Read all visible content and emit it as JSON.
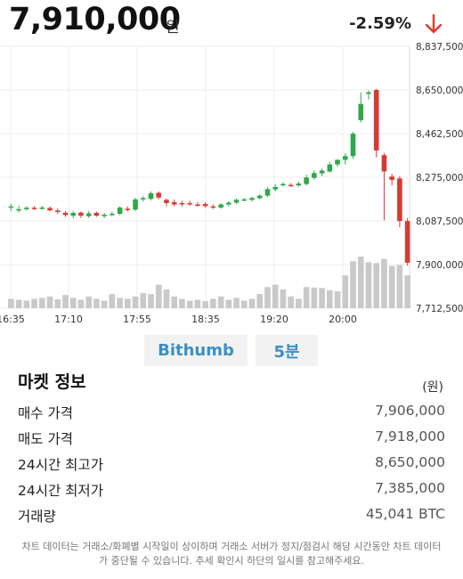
{
  "header": {
    "price": "7,910,000",
    "unit": "원",
    "change": "-2.59%",
    "arrow_icon": "arrow-down-icon",
    "arrow_color": "#e03b2e"
  },
  "colors": {
    "up": "#2ea84a",
    "down": "#d63a34",
    "volume": "#c9c9c9"
  },
  "chart_data": {
    "type": "candlestick",
    "x_ticks": [
      "16:35",
      "17:10",
      "17:55",
      "18:35",
      "19:20",
      "20:00"
    ],
    "y_ticks": [
      "8,837,500",
      "8,650,000",
      "8,462,500",
      "8,275,000",
      "8,087,500",
      "7,900,000",
      "7,712,500"
    ],
    "ylim": [
      7712500,
      8837500
    ],
    "candles": [
      {
        "o": 8150000,
        "c": 8150000,
        "h": 8160000,
        "l": 8130000,
        "v": 20
      },
      {
        "o": 8132000,
        "c": 8138000,
        "h": 8152000,
        "l": 8124000,
        "v": 18
      },
      {
        "o": 8138000,
        "c": 8144000,
        "h": 8150000,
        "l": 8132000,
        "v": 16
      },
      {
        "o": 8144000,
        "c": 8142000,
        "h": 8150000,
        "l": 8135000,
        "v": 20
      },
      {
        "o": 8142000,
        "c": 8145000,
        "h": 8152000,
        "l": 8136000,
        "v": 22
      },
      {
        "o": 8143000,
        "c": 8133000,
        "h": 8150000,
        "l": 8128000,
        "v": 25
      },
      {
        "o": 8132000,
        "c": 8126000,
        "h": 8140000,
        "l": 8118000,
        "v": 19
      },
      {
        "o": 8122000,
        "c": 8113000,
        "h": 8130000,
        "l": 8105000,
        "v": 28
      },
      {
        "o": 8110000,
        "c": 8122000,
        "h": 8130000,
        "l": 8100000,
        "v": 22
      },
      {
        "o": 8123000,
        "c": 8110000,
        "h": 8128000,
        "l": 8100000,
        "v": 18
      },
      {
        "o": 8108000,
        "c": 8120000,
        "h": 8130000,
        "l": 8100000,
        "v": 25
      },
      {
        "o": 8122000,
        "c": 8110000,
        "h": 8128000,
        "l": 8105000,
        "v": 20
      },
      {
        "o": 8108000,
        "c": 8114000,
        "h": 8122000,
        "l": 8100000,
        "v": 16
      },
      {
        "o": 8113000,
        "c": 8118000,
        "h": 8126000,
        "l": 8108000,
        "v": 30
      },
      {
        "o": 8118000,
        "c": 8145000,
        "h": 8150000,
        "l": 8112000,
        "v": 22
      },
      {
        "o": 8140000,
        "c": 8134000,
        "h": 8150000,
        "l": 8128000,
        "v": 20
      },
      {
        "o": 8136000,
        "c": 8180000,
        "h": 8186000,
        "l": 8130000,
        "v": 25
      },
      {
        "o": 8180000,
        "c": 8186000,
        "h": 8194000,
        "l": 8170000,
        "v": 32
      },
      {
        "o": 8182000,
        "c": 8206000,
        "h": 8214000,
        "l": 8176000,
        "v": 30
      },
      {
        "o": 8208000,
        "c": 8188000,
        "h": 8214000,
        "l": 8180000,
        "v": 50
      },
      {
        "o": 8178000,
        "c": 8164000,
        "h": 8184000,
        "l": 8150000,
        "v": 40
      },
      {
        "o": 8168000,
        "c": 8158000,
        "h": 8180000,
        "l": 8150000,
        "v": 25
      },
      {
        "o": 8164000,
        "c": 8162000,
        "h": 8174000,
        "l": 8150000,
        "v": 20
      },
      {
        "o": 8164000,
        "c": 8160000,
        "h": 8174000,
        "l": 8152000,
        "v": 16
      },
      {
        "o": 8158000,
        "c": 8155000,
        "h": 8168000,
        "l": 8150000,
        "v": 18
      },
      {
        "o": 8160000,
        "c": 8151000,
        "h": 8168000,
        "l": 8145000,
        "v": 15
      },
      {
        "o": 8150000,
        "c": 8145000,
        "h": 8158000,
        "l": 8138000,
        "v": 20
      },
      {
        "o": 8145000,
        "c": 8158000,
        "h": 8164000,
        "l": 8140000,
        "v": 25
      },
      {
        "o": 8158000,
        "c": 8166000,
        "h": 8172000,
        "l": 8150000,
        "v": 18
      },
      {
        "o": 8166000,
        "c": 8178000,
        "h": 8184000,
        "l": 8160000,
        "v": 22
      },
      {
        "o": 8178000,
        "c": 8180000,
        "h": 8186000,
        "l": 8172000,
        "v": 16
      },
      {
        "o": 8178000,
        "c": 8186000,
        "h": 8192000,
        "l": 8170000,
        "v": 20
      },
      {
        "o": 8185000,
        "c": 8196000,
        "h": 8202000,
        "l": 8180000,
        "v": 30
      },
      {
        "o": 8196000,
        "c": 8224000,
        "h": 8232000,
        "l": 8190000,
        "v": 45
      },
      {
        "o": 8223000,
        "c": 8233000,
        "h": 8246000,
        "l": 8215000,
        "v": 50
      },
      {
        "o": 8240000,
        "c": 8246000,
        "h": 8254000,
        "l": 8236000,
        "v": 40
      },
      {
        "o": 8242000,
        "c": 8240000,
        "h": 8250000,
        "l": 8235000,
        "v": 25
      },
      {
        "o": 8240000,
        "c": 8248000,
        "h": 8256000,
        "l": 8234000,
        "v": 20
      },
      {
        "o": 8246000,
        "c": 8274000,
        "h": 8286000,
        "l": 8240000,
        "v": 45
      },
      {
        "o": 8272000,
        "c": 8293000,
        "h": 8305000,
        "l": 8265000,
        "v": 44
      },
      {
        "o": 8292000,
        "c": 8304000,
        "h": 8312000,
        "l": 8280000,
        "v": 43
      },
      {
        "o": 8300000,
        "c": 8330000,
        "h": 8340000,
        "l": 8295000,
        "v": 38
      },
      {
        "o": 8330000,
        "c": 8350000,
        "h": 8352000,
        "l": 8320000,
        "v": 36
      },
      {
        "o": 8350000,
        "c": 8366000,
        "h": 8378000,
        "l": 8330000,
        "v": 70
      },
      {
        "o": 8366000,
        "c": 8462000,
        "h": 8470000,
        "l": 8355000,
        "v": 100
      },
      {
        "o": 8520000,
        "c": 8590000,
        "h": 8640000,
        "l": 8510000,
        "v": 110
      },
      {
        "o": 8633000,
        "c": 8640000,
        "h": 8648000,
        "l": 8610000,
        "v": 98
      },
      {
        "o": 8650000,
        "c": 8390000,
        "h": 8655000,
        "l": 8360000,
        "v": 96
      },
      {
        "o": 8370000,
        "c": 8300000,
        "h": 8380000,
        "l": 8090000,
        "v": 105
      },
      {
        "o": 8278000,
        "c": 8264000,
        "h": 8290000,
        "l": 8240000,
        "v": 90
      },
      {
        "o": 8270000,
        "c": 8087000,
        "h": 8280000,
        "l": 8060000,
        "v": 92
      },
      {
        "o": 8087000,
        "c": 7908000,
        "h": 8100000,
        "l": 7895000,
        "v": 70
      }
    ]
  },
  "tabs": {
    "exchange": "Bithumb",
    "interval": "5분"
  },
  "market": {
    "title": "마켓 정보",
    "unit": "(원)",
    "rows": [
      {
        "label": "매수 가격",
        "value": "7,906,000"
      },
      {
        "label": "매도 가격",
        "value": "7,918,000"
      },
      {
        "label": "24시간 최고가",
        "value": "8,650,000"
      },
      {
        "label": "24시간 최저가",
        "value": "7,385,000"
      },
      {
        "label": "거래량",
        "value": "45,041 BTC"
      }
    ]
  },
  "footnote": "차트 데이터는 거래소/화폐별 시작일이 상이하며 거래소 서버가 정지/점검시 해당 시간동안 차트 데이터가 중단될 수 있습니다. 추세 확인시 하단의 일시를 참고해주세요."
}
